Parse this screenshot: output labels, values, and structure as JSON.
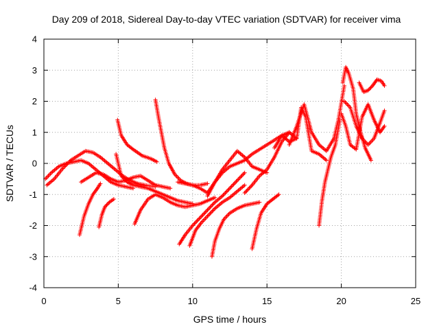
{
  "chart_data": {
    "type": "scatter",
    "title": "Day 209 of 2018, Sidereal Day-to-day VTEC variation (SDTVAR) for receiver vima",
    "xlabel": "GPS time / hours",
    "ylabel": "SDTVAR / TECUs",
    "xlim": [
      0,
      25
    ],
    "ylim": [
      -4,
      4
    ],
    "xticks": [
      0,
      5,
      10,
      15,
      20,
      25
    ],
    "yticks": [
      -4,
      -3,
      -2,
      -1,
      0,
      1,
      2,
      3,
      4
    ],
    "grid": true,
    "marker": "plus",
    "color": "#ff0000",
    "tracks": [
      {
        "x": [
          0.1,
          0.5,
          1.0,
          1.5,
          2.0,
          2.5,
          3.0,
          3.5,
          4.0,
          4.5,
          5.0,
          5.5,
          6.0
        ],
        "y": [
          -0.5,
          -0.3,
          -0.1,
          0.0,
          0.05,
          0.1,
          0.0,
          -0.2,
          -0.4,
          -0.6,
          -0.7,
          -0.75,
          -0.8
        ]
      },
      {
        "x": [
          0.2,
          0.7,
          1.2,
          1.8,
          2.3,
          2.8,
          3.3,
          3.8,
          4.3,
          4.8,
          5.3,
          5.8,
          6.3,
          6.8,
          7.5
        ],
        "y": [
          -0.7,
          -0.5,
          -0.2,
          0.1,
          0.25,
          0.4,
          0.35,
          0.2,
          0.0,
          -0.2,
          -0.4,
          -0.55,
          -0.65,
          -0.7,
          -0.75
        ]
      },
      {
        "x": [
          2.5,
          3.0,
          3.5,
          4.0,
          4.5,
          5.0,
          5.5,
          6.0,
          6.5,
          7.0,
          7.5,
          8.0,
          8.5
        ],
        "y": [
          -0.6,
          -0.45,
          -0.3,
          -0.35,
          -0.5,
          -0.6,
          -0.55,
          -0.45,
          -0.4,
          -0.55,
          -0.7,
          -0.75,
          -0.8
        ]
      },
      {
        "x": [
          2.4,
          2.7,
          3.0,
          3.3,
          3.6,
          3.8
        ],
        "y": [
          -2.3,
          -1.7,
          -1.3,
          -1.0,
          -0.8,
          -0.65
        ]
      },
      {
        "x": [
          3.7,
          3.9,
          4.1,
          4.4,
          4.7
        ],
        "y": [
          -2.05,
          -1.65,
          -1.4,
          -1.25,
          -1.15
        ]
      },
      {
        "x": [
          4.95,
          5.2,
          5.6,
          6.0,
          6.6,
          7.2,
          7.6
        ],
        "y": [
          1.4,
          0.9,
          0.6,
          0.45,
          0.25,
          0.15,
          0.05
        ]
      },
      {
        "x": [
          4.85,
          5.2,
          5.6,
          6.0,
          6.5,
          7.0,
          7.5,
          8.0,
          8.5,
          9.0,
          9.5,
          10.0
        ],
        "y": [
          0.3,
          -0.4,
          -0.6,
          -0.7,
          -0.75,
          -0.8,
          -0.9,
          -1.0,
          -1.1,
          -1.2,
          -1.25,
          -1.3
        ]
      },
      {
        "x": [
          6.1,
          6.5,
          7.0,
          7.5,
          8.0,
          8.5,
          9.0,
          9.5,
          10.0,
          10.5,
          11.0,
          11.5
        ],
        "y": [
          -1.95,
          -1.5,
          -1.15,
          -1.0,
          -1.1,
          -1.25,
          -1.35,
          -1.4,
          -1.35,
          -1.3,
          -1.2,
          -1.1
        ]
      },
      {
        "x": [
          7.5,
          7.7,
          7.9,
          8.1,
          8.4,
          8.8,
          9.2,
          9.6,
          10.0,
          10.5,
          11.0
        ],
        "y": [
          2.05,
          1.5,
          1.0,
          0.5,
          0.0,
          -0.35,
          -0.55,
          -0.65,
          -0.7,
          -0.7,
          -0.65
        ]
      },
      {
        "x": [
          9.1,
          9.5,
          10.0,
          10.5,
          11.0,
          11.5,
          12.0,
          12.5,
          13.0,
          13.5
        ],
        "y": [
          -2.6,
          -2.3,
          -2.0,
          -1.75,
          -1.5,
          -1.25,
          -1.05,
          -0.8,
          -0.55,
          -0.3
        ]
      },
      {
        "x": [
          9.8,
          10.2,
          10.6,
          11.0,
          11.5,
          12.0,
          12.5,
          13.0,
          13.5
        ],
        "y": [
          -2.65,
          -2.15,
          -1.9,
          -1.7,
          -1.45,
          -1.25,
          -1.1,
          -0.9,
          -0.7
        ]
      },
      {
        "x": [
          11.3,
          11.5,
          11.8,
          12.1,
          12.5,
          13.0,
          13.5,
          14.0,
          14.5
        ],
        "y": [
          -3.0,
          -2.5,
          -2.1,
          -1.8,
          -1.6,
          -1.45,
          -1.35,
          -1.3,
          -1.25
        ]
      },
      {
        "x": [
          9.0,
          9.5,
          10.0,
          10.5,
          11.0,
          11.5,
          12.0,
          12.5,
          13.0,
          13.5,
          14.0,
          14.5,
          15.0
        ],
        "y": [
          -0.6,
          -0.65,
          -0.7,
          -0.8,
          -0.95,
          -0.6,
          -0.2,
          0.1,
          0.4,
          0.2,
          -0.1,
          -0.2,
          -0.3
        ]
      },
      {
        "x": [
          11.0,
          11.5,
          12.0,
          12.5,
          13.0,
          13.5,
          14.0,
          14.5,
          15.0,
          15.5,
          16.0,
          16.5,
          17.0
        ],
        "y": [
          -1.05,
          -0.6,
          -0.3,
          -0.1,
          0.0,
          0.1,
          0.3,
          0.45,
          0.6,
          0.75,
          0.9,
          0.7,
          0.8
        ]
      },
      {
        "x": [
          14.0,
          14.3,
          14.6,
          15.0,
          15.4,
          15.8
        ],
        "y": [
          -2.75,
          -2.1,
          -1.6,
          -1.3,
          -1.15,
          -1.0
        ]
      },
      {
        "x": [
          13.5,
          14.0,
          14.5,
          15.0,
          15.5,
          16.0,
          16.5
        ],
        "y": [
          -0.95,
          -0.7,
          -0.4,
          -0.2,
          0.2,
          0.7,
          1.0
        ]
      },
      {
        "x": [
          15.5,
          16.0,
          16.5,
          17.0,
          17.3,
          17.6,
          18.0,
          18.5,
          19.0
        ],
        "y": [
          0.5,
          0.9,
          1.0,
          0.8,
          1.8,
          1.5,
          0.4,
          0.3,
          0.1
        ]
      },
      {
        "x": [
          16.5,
          17.0,
          17.5,
          18.0,
          18.5,
          19.0,
          19.5,
          19.8,
          20.2
        ],
        "y": [
          0.6,
          1.2,
          1.9,
          1.0,
          0.6,
          0.4,
          0.8,
          1.4,
          2.5
        ]
      },
      {
        "x": [
          18.5,
          18.7,
          18.9,
          19.1,
          19.3,
          19.6,
          19.9
        ],
        "y": [
          -2.0,
          -1.2,
          -0.6,
          -0.2,
          0.2,
          0.6,
          1.4
        ]
      },
      {
        "x": [
          20.1,
          20.3,
          20.5,
          20.8,
          21.0,
          21.3,
          21.6,
          22.0
        ],
        "y": [
          2.6,
          3.1,
          2.9,
          2.4,
          1.6,
          1.0,
          0.5,
          0.1
        ]
      },
      {
        "x": [
          20.2,
          20.6,
          21.0,
          21.4,
          21.8,
          22.2,
          22.6,
          22.9
        ],
        "y": [
          2.0,
          1.8,
          1.2,
          0.8,
          0.6,
          0.8,
          1.3,
          1.7
        ]
      },
      {
        "x": [
          21.2,
          21.5,
          21.8,
          22.1,
          22.4,
          22.7,
          22.9
        ],
        "y": [
          2.6,
          2.3,
          2.35,
          2.5,
          2.7,
          2.65,
          2.5
        ]
      },
      {
        "x": [
          20.0,
          20.3,
          20.6,
          21.0,
          21.4,
          21.8,
          22.2,
          22.6,
          22.9
        ],
        "y": [
          1.6,
          1.2,
          0.6,
          0.45,
          1.5,
          1.9,
          1.4,
          1.0,
          1.2
        ]
      }
    ]
  }
}
